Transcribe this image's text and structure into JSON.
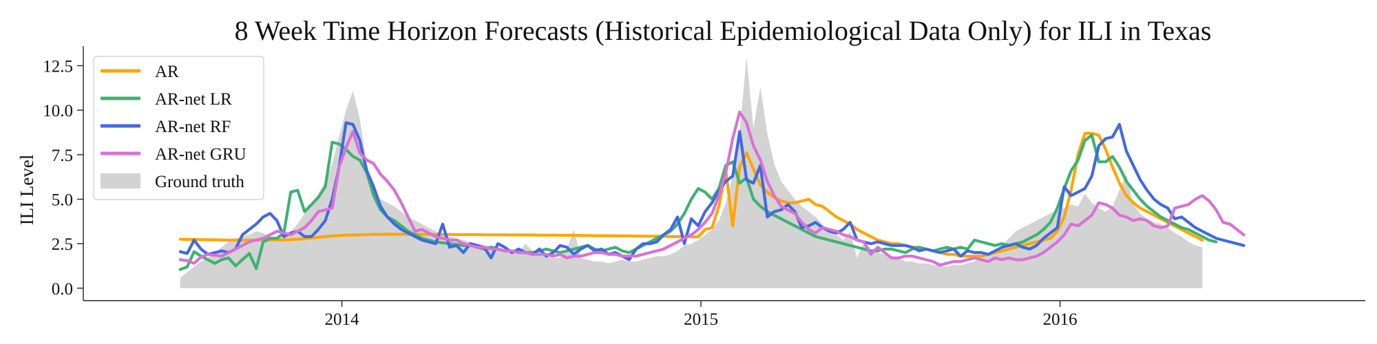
{
  "chart_data": {
    "type": "line",
    "title": "8 Week Time Horizon Forecasts (Historical Epidemiological Data Only) for ILI in Texas",
    "xlabel": "",
    "ylabel": "ILI Level",
    "x_start": 2013.55,
    "x_step": 0.019231,
    "xlim": [
      2013.28,
      2016.85
    ],
    "ylim": [
      -0.7,
      13.6
    ],
    "x_ticks": [
      2014,
      2015,
      2016
    ],
    "x_tick_labels": [
      "2014",
      "2015",
      "2016"
    ],
    "y_ticks": [
      0.0,
      2.5,
      5.0,
      7.5,
      10.0,
      12.5
    ],
    "y_tick_labels": [
      "0.0",
      "2.5",
      "5.0",
      "7.5",
      "10.0",
      "12.5"
    ],
    "grid": false,
    "legend_position": "top-left",
    "ground_truth": {
      "name": "Ground truth",
      "color": "#d3d3d3",
      "values": [
        0.6,
        0.9,
        1.2,
        1.5,
        1.7,
        2.0,
        2.3,
        2.6,
        2.8,
        2.9,
        3.0,
        3.2,
        3.1,
        2.9,
        2.8,
        2.9,
        3.2,
        3.6,
        4.2,
        4.8,
        5.3,
        6.0,
        7.0,
        8.5,
        10.0,
        11.1,
        9.5,
        7.0,
        5.5,
        5.0,
        4.8,
        4.6,
        4.3,
        4.0,
        3.8,
        3.6,
        3.4,
        3.2,
        3.0,
        2.9,
        2.8,
        2.7,
        2.6,
        2.5,
        2.4,
        2.4,
        2.3,
        2.2,
        2.1,
        2.0,
        2.5,
        2.1,
        1.9,
        1.8,
        1.7,
        1.7,
        2.2,
        3.3,
        1.7,
        1.6,
        1.5,
        1.5,
        1.4,
        1.5,
        1.6,
        1.5,
        1.5,
        1.6,
        1.7,
        1.8,
        1.8,
        1.9,
        2.1,
        2.4,
        2.5,
        2.7,
        3.0,
        3.3,
        3.8,
        4.8,
        6.3,
        8.8,
        13.0,
        9.0,
        11.3,
        8.7,
        7.0,
        6.0,
        5.5,
        5.0,
        4.6,
        4.3,
        4.0,
        3.6,
        3.2,
        3.0,
        2.7,
        3.2,
        1.7,
        2.6,
        2.2,
        2.0,
        1.9,
        1.8,
        1.7,
        1.5,
        1.5,
        1.4,
        1.4,
        1.3,
        1.3,
        1.2,
        1.3,
        1.3,
        1.4,
        1.5,
        1.7,
        1.9,
        2.1,
        2.4,
        2.8,
        3.2,
        3.4,
        3.6,
        3.8,
        4.0,
        4.2,
        4.4,
        4.5,
        4.7,
        4.6,
        5.3,
        4.8,
        4.5,
        4.3,
        4.6,
        5.5,
        6.4,
        4.7,
        4.2,
        3.9,
        3.7,
        3.6,
        3.4,
        3.1,
        2.9,
        2.6,
        2.4,
        2.3
      ]
    },
    "series": [
      {
        "name": "AR",
        "color": "#ffa500",
        "values": [
          2.75,
          2.74,
          2.74,
          2.73,
          2.72,
          2.72,
          2.71,
          2.7,
          2.7,
          2.69,
          2.7,
          2.7,
          2.71,
          2.71,
          2.71,
          2.72,
          2.73,
          2.75,
          2.78,
          2.82,
          2.86,
          2.9,
          2.93,
          2.96,
          2.98,
          2.99,
          3.0,
          3.01,
          3.02,
          3.02,
          3.03,
          3.03,
          3.03,
          3.03,
          3.03,
          3.03,
          3.02,
          3.02,
          3.02,
          3.02,
          3.01,
          3.01,
          3.01,
          3.01,
          3.0,
          3.0,
          3.0,
          3.0,
          2.99,
          2.99,
          2.99,
          2.99,
          2.98,
          2.98,
          2.98,
          2.97,
          2.97,
          2.97,
          2.96,
          2.96,
          2.95,
          2.95,
          2.95,
          2.94,
          2.94,
          2.94,
          2.93,
          2.93,
          2.92,
          2.92,
          2.91,
          2.91,
          2.9,
          2.9,
          2.89,
          2.89,
          3.3,
          3.4,
          4.6,
          6.6,
          3.5,
          6.8,
          7.6,
          6.7,
          5.8,
          5.4,
          5.1,
          4.9,
          4.8,
          4.8,
          4.9,
          5.0,
          4.7,
          4.6,
          4.3,
          4.0,
          3.8,
          3.6,
          3.3,
          3.1,
          2.9,
          2.7,
          2.6,
          2.5,
          2.5,
          2.4,
          2.3,
          2.3,
          2.2,
          2.1,
          2.0,
          1.9,
          1.9,
          1.8,
          1.8,
          1.8,
          1.8,
          1.9,
          2.0,
          2.1,
          2.2,
          2.3,
          2.4,
          2.5,
          2.6,
          2.7,
          2.8,
          3.2,
          4.0,
          5.5,
          7.5,
          8.7,
          8.7,
          8.6,
          7.8,
          6.8,
          5.9,
          5.2,
          4.8,
          4.5,
          4.3,
          4.1,
          3.9,
          3.7,
          3.5,
          3.3,
          3.1,
          2.9,
          2.7
        ]
      },
      {
        "name": "AR-net LR",
        "color": "#3cb371",
        "values": [
          1.05,
          1.2,
          2.05,
          1.8,
          1.6,
          1.4,
          1.6,
          1.7,
          1.25,
          1.6,
          1.95,
          1.1,
          2.6,
          2.8,
          2.8,
          3.1,
          5.4,
          5.5,
          4.3,
          4.7,
          5.1,
          5.7,
          8.2,
          8.1,
          7.8,
          7.4,
          7.2,
          6.5,
          5.2,
          4.4,
          4.0,
          3.8,
          3.5,
          3.2,
          3.0,
          2.8,
          2.7,
          2.6,
          2.55,
          2.5,
          2.45,
          2.4,
          2.4,
          2.3,
          2.2,
          2.3,
          2.2,
          2.1,
          2.1,
          2.0,
          2.0,
          2.0,
          2.1,
          2.2,
          2.1,
          2.0,
          2.1,
          2.2,
          2.3,
          2.4,
          2.2,
          2.1,
          2.2,
          2.3,
          2.1,
          2.0,
          2.2,
          2.4,
          2.6,
          2.8,
          3.0,
          3.2,
          3.6,
          4.2,
          5.0,
          5.6,
          5.4,
          5.0,
          5.6,
          6.9,
          7.1,
          5.9,
          6.2,
          5.0,
          4.6,
          4.3,
          4.1,
          3.9,
          3.7,
          3.5,
          3.3,
          3.1,
          2.9,
          2.8,
          2.7,
          2.6,
          2.5,
          2.4,
          2.3,
          2.2,
          2.1,
          2.1,
          2.2,
          2.2,
          2.1,
          2.0,
          2.2,
          2.3,
          2.2,
          2.1,
          2.2,
          2.3,
          2.2,
          2.3,
          2.2,
          2.7,
          2.6,
          2.5,
          2.4,
          2.5,
          2.4,
          2.5,
          2.6,
          2.8,
          3.0,
          3.3,
          3.7,
          4.5,
          5.6,
          6.6,
          7.2,
          8.3,
          8.6,
          7.1,
          7.1,
          7.4,
          6.8,
          6.0,
          5.5,
          5.0,
          4.6,
          4.3,
          4.0,
          3.8,
          3.6,
          3.4,
          3.3,
          3.1,
          2.9,
          2.7,
          2.6
        ]
      },
      {
        "name": "AR-net RF",
        "color": "#4169e1",
        "values": [
          2.05,
          1.95,
          2.7,
          2.2,
          1.9,
          2.0,
          2.1,
          2.0,
          2.2,
          3.0,
          3.3,
          3.6,
          4.0,
          4.2,
          3.8,
          2.9,
          3.1,
          3.2,
          2.9,
          2.9,
          3.3,
          3.8,
          5.0,
          6.8,
          9.3,
          9.2,
          8.3,
          6.6,
          5.7,
          4.6,
          4.0,
          3.6,
          3.3,
          3.1,
          2.9,
          2.7,
          2.6,
          2.5,
          3.6,
          2.3,
          2.4,
          2.0,
          2.5,
          2.4,
          2.3,
          1.7,
          2.5,
          2.3,
          2.0,
          2.2,
          2.0,
          1.9,
          2.2,
          1.8,
          2.0,
          2.4,
          2.3,
          1.9,
          2.2,
          2.4,
          2.1,
          2.2,
          1.9,
          2.0,
          1.8,
          1.6,
          2.2,
          2.5,
          2.5,
          2.6,
          3.0,
          3.3,
          4.0,
          2.5,
          3.9,
          3.5,
          4.3,
          4.8,
          5.5,
          6.0,
          6.3,
          8.8,
          6.1,
          5.9,
          6.9,
          4.0,
          4.3,
          4.4,
          4.7,
          4.3,
          3.4,
          3.5,
          3.7,
          3.4,
          3.2,
          3.1,
          3.3,
          3.7,
          2.7,
          2.6,
          2.5,
          2.6,
          2.5,
          2.4,
          2.4,
          2.4,
          2.3,
          2.1,
          2.2,
          2.1,
          2.0,
          2.1,
          2.2,
          1.8,
          2.1,
          2.0,
          2.0,
          1.9,
          2.1,
          2.3,
          2.4,
          2.5,
          2.3,
          2.2,
          2.4,
          2.8,
          3.1,
          3.4,
          5.7,
          5.2,
          5.4,
          5.6,
          6.3,
          8.0,
          8.4,
          8.5,
          9.2,
          7.7,
          6.9,
          6.1,
          5.5,
          5.0,
          4.7,
          4.5,
          3.9,
          4.0,
          3.7,
          3.4,
          3.2,
          3.0,
          2.8,
          2.7,
          2.6,
          2.5,
          2.4
        ]
      },
      {
        "name": "AR-net GRU",
        "color": "#da70d6",
        "values": [
          1.6,
          1.55,
          1.4,
          1.75,
          1.9,
          1.85,
          1.8,
          2.0,
          2.2,
          2.4,
          2.6,
          2.7,
          2.8,
          3.0,
          3.2,
          3.1,
          3.0,
          3.2,
          3.4,
          3.8,
          4.3,
          4.4,
          4.5,
          6.8,
          7.9,
          8.8,
          7.6,
          7.2,
          7.0,
          6.4,
          6.0,
          5.5,
          4.8,
          4.0,
          3.2,
          3.3,
          3.1,
          2.9,
          2.8,
          2.7,
          2.7,
          2.5,
          2.4,
          2.3,
          2.3,
          2.2,
          2.2,
          2.1,
          2.1,
          2.0,
          2.0,
          1.9,
          1.9,
          1.9,
          1.8,
          1.9,
          1.7,
          1.8,
          1.8,
          1.9,
          2.0,
          2.0,
          1.9,
          1.9,
          1.8,
          1.8,
          1.8,
          1.9,
          2.0,
          2.1,
          2.2,
          2.4,
          2.6,
          2.8,
          3.0,
          3.3,
          3.7,
          4.2,
          5.2,
          6.5,
          8.4,
          9.9,
          9.3,
          8.0,
          7.2,
          6.0,
          5.2,
          4.6,
          4.4,
          4.2,
          3.7,
          3.3,
          3.1,
          3.4,
          3.3,
          3.2,
          3.0,
          2.9,
          2.7,
          2.6,
          1.9,
          2.3,
          2.0,
          1.7,
          1.7,
          1.8,
          1.8,
          1.7,
          1.6,
          1.5,
          1.3,
          1.4,
          1.5,
          1.5,
          1.6,
          1.7,
          1.6,
          1.5,
          1.7,
          1.6,
          1.7,
          1.6,
          1.6,
          1.7,
          1.8,
          2.0,
          2.3,
          2.6,
          3.0,
          3.6,
          3.5,
          3.8,
          4.1,
          4.8,
          4.7,
          4.5,
          4.1,
          4.0,
          3.8,
          3.9,
          3.8,
          3.5,
          3.4,
          3.5,
          4.5,
          4.6,
          4.7,
          5.0,
          5.2,
          4.9,
          4.4,
          3.7,
          3.6,
          3.3,
          3.0
        ]
      }
    ]
  }
}
